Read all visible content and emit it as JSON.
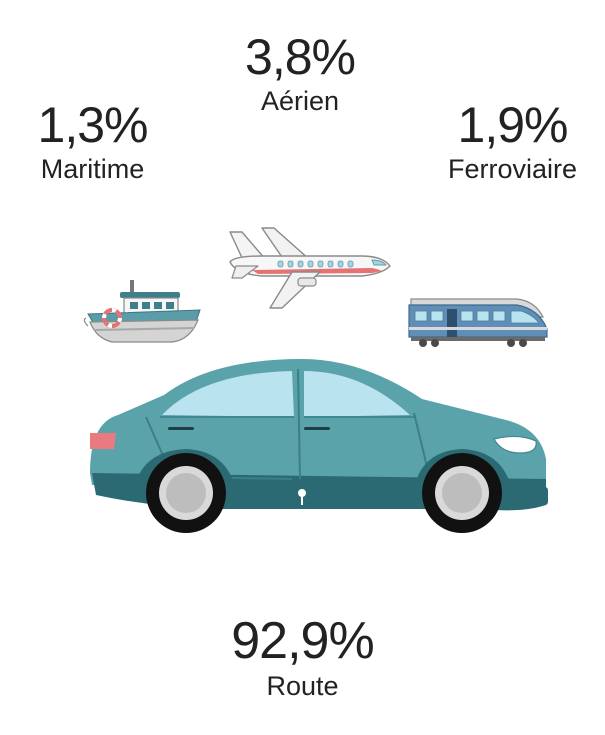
{
  "stats": {
    "aerien": {
      "value": "3,8%",
      "label": "Aérien"
    },
    "maritime": {
      "value": "1,3%",
      "label": "Maritime"
    },
    "ferroviaire": {
      "value": "1,9%",
      "label": "Ferroviaire"
    },
    "route": {
      "value": "92,9%",
      "label": "Route"
    }
  },
  "colors": {
    "car_body": "#5aa3ab",
    "car_dark": "#2c6a73",
    "window": "#b9e3ee",
    "plane_stripe": "#e57373",
    "boat_hull": "#4f8f9b",
    "train_body": "#5f8fb6",
    "tail_light": "#e97b80"
  },
  "icons": [
    "plane-icon",
    "boat-icon",
    "train-icon",
    "car-icon"
  ]
}
